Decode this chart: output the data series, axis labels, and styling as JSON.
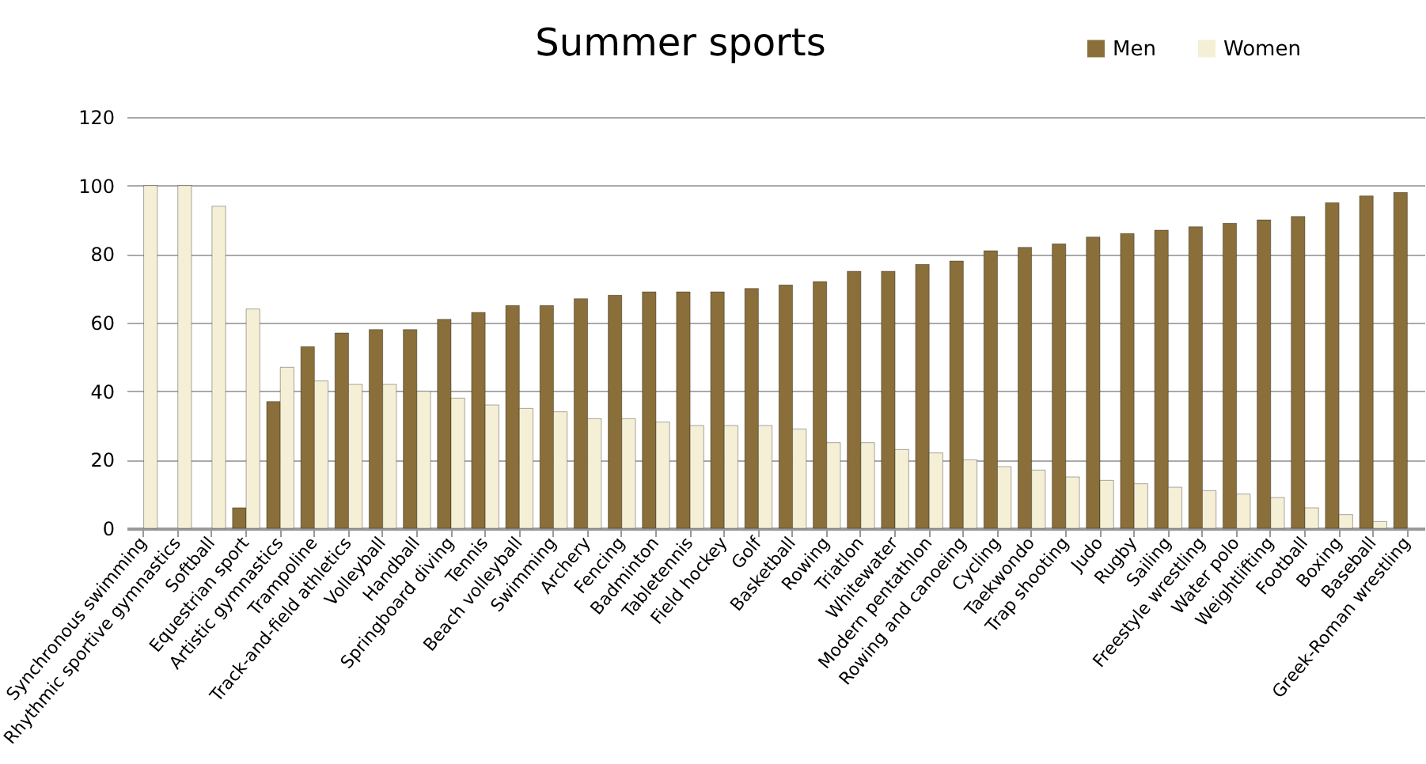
{
  "chart_data": {
    "type": "bar",
    "title": "Summer sports",
    "categories": [
      "Synchronous swimming",
      "Rhythmic sportive gymnastics",
      "Softball",
      "Equestrian sport",
      "Artistic gymnastics",
      "Trampoline",
      "Track-and-field athletics",
      "Volleyball",
      "Handball",
      "Springboard diving",
      "Tennis",
      "Beach volleyball",
      "Swimming",
      "Archery",
      "Fencing",
      "Badminton",
      "Tabletennis",
      "Field hockey",
      "Golf",
      "Basketball",
      "Rowing",
      "Triatlon",
      "Whitewater",
      "Modern pentathlon",
      "Rowing and canoeing",
      "Cycling",
      "Taekwondo",
      "Trap shooting",
      "Judo",
      "Rugby",
      "Sailing",
      "Freestyle wrestling",
      "Water polo",
      "Weightlifting",
      "Football",
      "Boxing",
      "Baseball",
      "Greek-Roman wrestling"
    ],
    "series": [
      {
        "name": "Men",
        "color": "#8a6f3a",
        "values": [
          null,
          null,
          null,
          6,
          37,
          53,
          57,
          58,
          58,
          61,
          63,
          65,
          65,
          67,
          68,
          69,
          69,
          69,
          70,
          71,
          72,
          75,
          75,
          77,
          78,
          81,
          82,
          83,
          85,
          86,
          87,
          88,
          89,
          90,
          91,
          95,
          97,
          98
        ]
      },
      {
        "name": "Women",
        "color": "#f5efd6",
        "values": [
          100,
          100,
          94,
          64,
          47,
          43,
          42,
          42,
          40,
          38,
          36,
          35,
          34,
          32,
          32,
          31,
          30,
          30,
          30,
          29,
          25,
          25,
          23,
          22,
          20,
          18,
          17,
          15,
          14,
          13,
          12,
          11,
          10,
          9,
          6,
          4,
          2,
          null
        ]
      }
    ],
    "ylim": [
      0,
      120
    ],
    "yticks": [
      0,
      20,
      40,
      60,
      80,
      100,
      120
    ],
    "grid": "y",
    "legend": "top right"
  }
}
